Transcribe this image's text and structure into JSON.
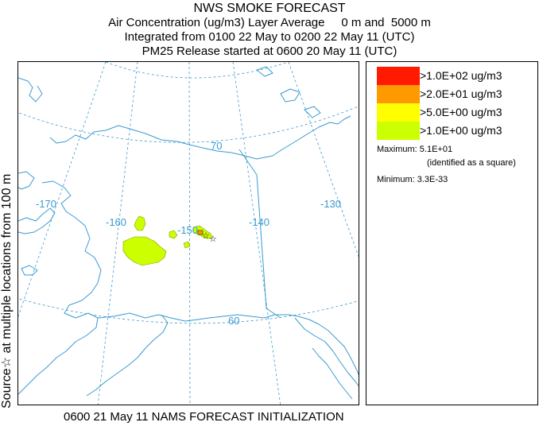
{
  "titles": [
    "NWS SMOKE FORECAST",
    "Air Concentration (ug/m3) Layer Average     0 m and  5000 m",
    "Integrated from 0100 22 May to 0200 22 May 11 (UTC)",
    "PM25 Release started at 0600 20 May 11 (UTC)"
  ],
  "side_label": "Source☆ at multiple locations    from    100 m",
  "footer": "0600 21 May 11 NAMS FORECAST INITIALIZATION",
  "legend": {
    "items": [
      {
        "label": ">1.0E+02 ug/m3",
        "color": "#ff1a00"
      },
      {
        "label": ">2.0E+01 ug/m3",
        "color": "#ff9900"
      },
      {
        "label": ">5.0E+00 ug/m3",
        "color": "#ffff00"
      },
      {
        "label": ">1.0E+00 ug/m3",
        "color": "#ccff00"
      }
    ],
    "maximum": "Maximum: 5.1E+01",
    "maximum_note": "(identified as a square)",
    "minimum": "Minimum: 3.3E-33"
  },
  "map": {
    "grid_labels": {
      "lon_170": "-170",
      "lon_160": "-160",
      "lon_150": "-150",
      "lon_140": "-140",
      "lon_130": "-130",
      "lat_70": "70",
      "lat_60": "60"
    },
    "colors": {
      "coast": "#3a9ad0",
      "grid": "#3a9ad0",
      "smoke_low": "#ccff00",
      "smoke_mid": "#ff9900"
    }
  }
}
